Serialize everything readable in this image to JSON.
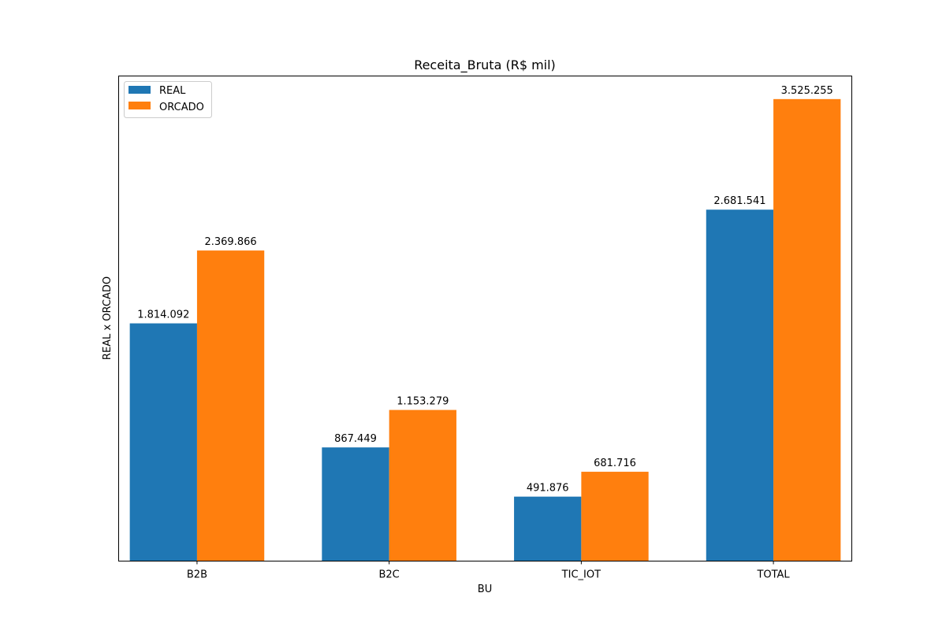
{
  "chart_data": {
    "type": "bar",
    "title": "Receita_Bruta (R$ mil)",
    "xlabel": "BU",
    "ylabel": "REAL x ORCADO",
    "categories": [
      "B2B",
      "B2C",
      "TIC_IOT",
      "TOTAL"
    ],
    "series": [
      {
        "name": "REAL",
        "color": "#1f77b4",
        "values": [
          1814092,
          867449,
          491876,
          2681541
        ],
        "labels": [
          "1.814.092",
          "867.449",
          "491.876",
          "2.681.541"
        ]
      },
      {
        "name": "ORCADO",
        "color": "#ff7f0e",
        "values": [
          2369866,
          1153279,
          681716,
          3525255
        ],
        "labels": [
          "2.369.866",
          "1.153.279",
          "681.716",
          "3.525.255"
        ]
      }
    ],
    "ylim": [
      0,
      3701518
    ],
    "y_ticks_visible": false,
    "grid": false,
    "legend_position": "upper-left"
  }
}
